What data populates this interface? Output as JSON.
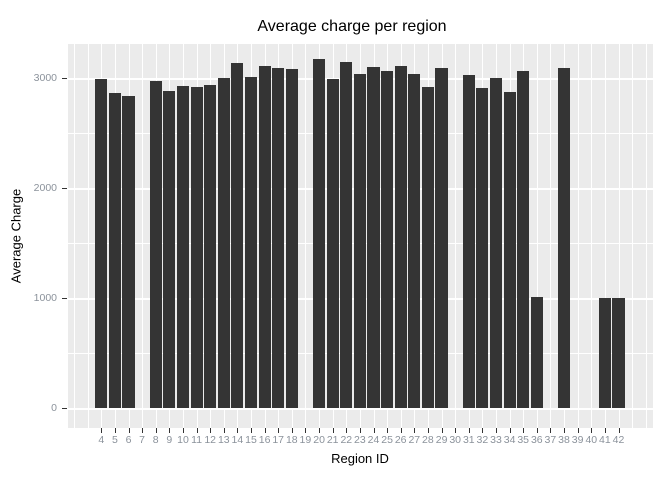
{
  "title": "Average charge per region",
  "axes": {
    "x_label": "Region ID",
    "y_label": "Average Charge",
    "y_major_ticks": [
      0,
      1000,
      2000,
      3000
    ],
    "y_minor_ticks": [
      500,
      1500,
      2500
    ]
  },
  "colors": {
    "page_bg": "#FFFFFF",
    "panel_bg": "#EBEBEB",
    "gridline": "#FFFFFF",
    "bar": "#343434",
    "tick_label_text": "#8B929B",
    "axis_title_text": "#000000",
    "tick_mark": "#333333"
  },
  "chart_data": {
    "type": "bar",
    "title": "Average charge per region",
    "xlabel": "Region ID",
    "ylabel": "Average Charge",
    "categories": [
      4,
      5,
      6,
      7,
      8,
      9,
      10,
      11,
      12,
      13,
      14,
      15,
      16,
      17,
      18,
      19,
      20,
      21,
      22,
      23,
      24,
      25,
      26,
      27,
      28,
      29,
      30,
      31,
      32,
      33,
      34,
      35,
      36,
      37,
      38,
      39,
      40,
      41,
      42
    ],
    "values": [
      2990,
      2860,
      2840,
      null,
      2970,
      2880,
      2930,
      2920,
      2940,
      3000,
      3140,
      3010,
      3110,
      3090,
      3080,
      null,
      3170,
      2990,
      3150,
      3040,
      3100,
      3060,
      3110,
      3040,
      2920,
      3090,
      null,
      3030,
      2910,
      3000,
      2870,
      3060,
      1010,
      null,
      3090,
      null,
      null,
      1000,
      1000
    ],
    "ylim": [
      0,
      3300
    ],
    "y_major_step": 1000,
    "y_minor_step": 500,
    "grid": true,
    "legend": "none",
    "bar_color": "#343434",
    "missing_categories": [
      7,
      19,
      30,
      37,
      39,
      40
    ]
  }
}
